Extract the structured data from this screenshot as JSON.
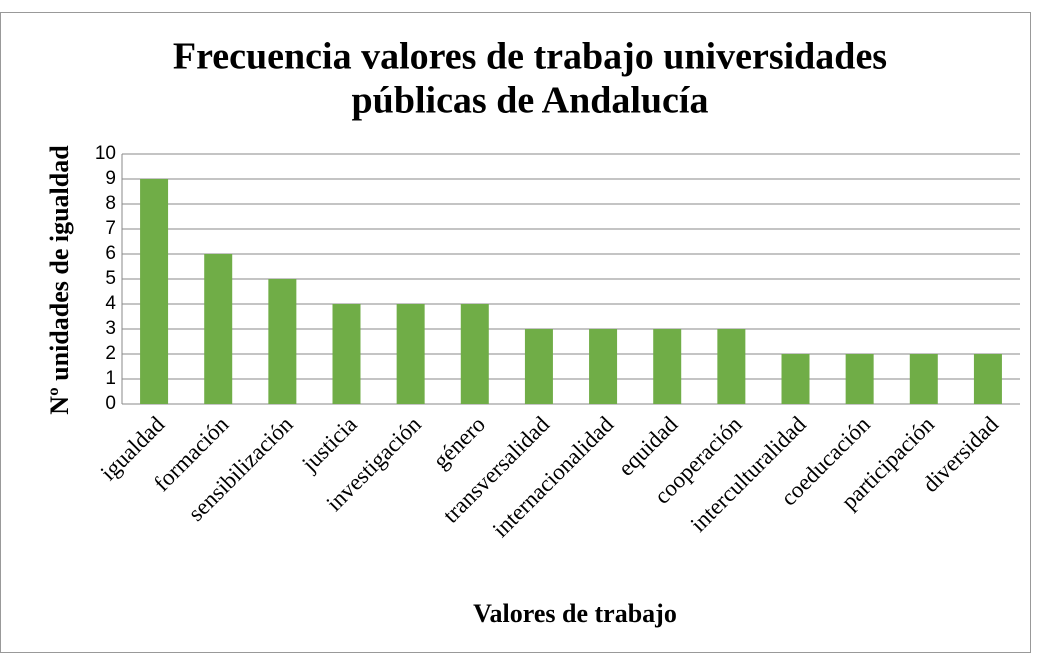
{
  "chart_data": {
    "type": "bar",
    "title": [
      "Frecuencia valores de trabajo universidades",
      "públicas de Andalucía"
    ],
    "x_label": "Valores de trabajo",
    "y_label": "Nº unidades de igualdad",
    "categories": [
      "igualdad",
      "formación",
      "sensibilización",
      "justicia",
      "investigación",
      "género",
      "transversalidad",
      "internacionalidad",
      "equidad",
      "cooperación",
      "interculturalidad",
      "coeducación",
      "participación",
      "diversidad"
    ],
    "values": [
      9,
      6,
      5,
      4,
      4,
      4,
      3,
      3,
      3,
      3,
      2,
      2,
      2,
      2
    ],
    "color": "#70ad47",
    "ylim": [
      0,
      10
    ],
    "yticks": [
      0,
      1,
      2,
      3,
      4,
      5,
      6,
      7,
      8,
      9,
      10
    ],
    "grid": true
  }
}
